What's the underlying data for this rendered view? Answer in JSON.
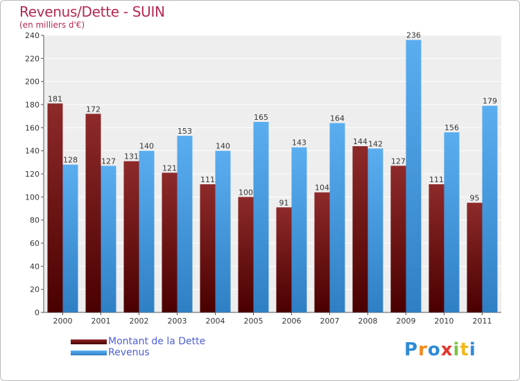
{
  "header": {
    "title": "Revenus/Dette - SUIN",
    "subtitle": "(en milliers d'€)"
  },
  "chart_data": {
    "type": "bar",
    "title": "Revenus/Dette - SUIN",
    "ylabel": "(en milliers d'€)",
    "xlabel": "",
    "categories": [
      "2000",
      "2001",
      "2002",
      "2003",
      "2004",
      "2005",
      "2006",
      "2007",
      "2008",
      "2009",
      "2010",
      "2011"
    ],
    "series": [
      {
        "name": "Montant de la Dette",
        "color": "#7a1a1a",
        "values": [
          181,
          172,
          131,
          121,
          111,
          100,
          91,
          104,
          144,
          127,
          111,
          95
        ]
      },
      {
        "name": "Revenus",
        "color": "#4fa3e6",
        "values": [
          128,
          127,
          140,
          153,
          140,
          165,
          143,
          164,
          142,
          236,
          156,
          179
        ]
      }
    ],
    "ylim": [
      0,
      240
    ],
    "yticks": [
      0,
      20,
      40,
      60,
      80,
      100,
      120,
      140,
      160,
      180,
      200,
      220,
      240
    ],
    "grid": true,
    "legend_position": "bottom-left"
  },
  "logo": {
    "letters": [
      "P",
      "r",
      "o",
      "x",
      "i",
      "t",
      "i"
    ],
    "colors": [
      "#2e8bd6",
      "#f28a1c",
      "#2e8bd6",
      "#e5352c",
      "#7cc242",
      "#f2b81c",
      "#2e8bd6"
    ]
  }
}
